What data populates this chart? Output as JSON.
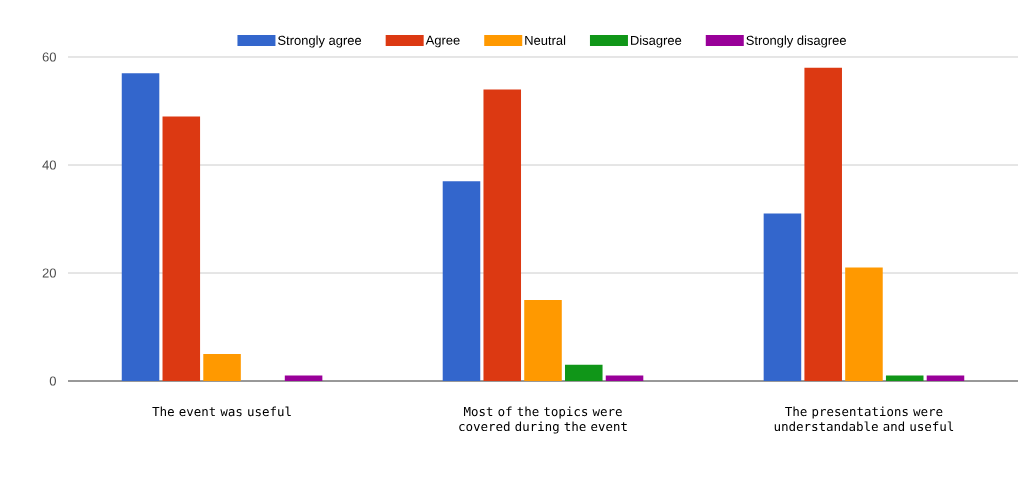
{
  "chart_data": {
    "type": "bar",
    "categories": [
      "The event was useful",
      "Most of the topics were covered during the event",
      "The presentations were understandable and useful"
    ],
    "series": [
      {
        "name": "Strongly agree",
        "color": "#3366cc",
        "values": [
          57,
          37,
          31
        ]
      },
      {
        "name": "Agree",
        "color": "#dc3912",
        "values": [
          49,
          54,
          58
        ]
      },
      {
        "name": "Neutral",
        "color": "#ff9900",
        "values": [
          5,
          15,
          21
        ]
      },
      {
        "name": "Disagree",
        "color": "#109618",
        "values": [
          0,
          3,
          1
        ]
      },
      {
        "name": "Strongly disagree",
        "color": "#990099",
        "values": [
          1,
          1,
          1
        ]
      }
    ],
    "ylim": [
      0,
      60
    ],
    "yticks": [
      0,
      20,
      40,
      60
    ],
    "grid": "y",
    "legend": "top"
  }
}
